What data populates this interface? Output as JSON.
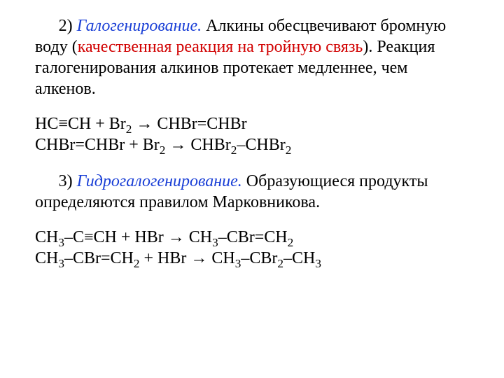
{
  "colors": {
    "text": "#000000",
    "term_blue": "#1a3fd6",
    "term_red": "#d10000",
    "background": "#ffffff"
  },
  "typography": {
    "font_family": "Times New Roman",
    "base_size_pt": 24
  },
  "section2": {
    "num": "2) ",
    "title": "Галогенирование.",
    "lead": " Алкины обесцвечивают бромную воду (",
    "qual": "качественная реакция на тройную связь",
    "tail": "). Реакция галогенирования алкинов протекает медленнее, чем алкенов."
  },
  "eq1": {
    "a": "HC≡CH + Br",
    "s1": "2",
    "b": " → CHBr=CHBr"
  },
  "eq2": {
    "a": "CHBr=CHBr + Br",
    "s1": "2",
    "b": " → CHBr",
    "s2": "2",
    "c": "–CHBr",
    "s3": "2"
  },
  "section3": {
    "num": "3) ",
    "title": "Гидрогалогенирование.",
    "body": " Образующиеся продукты определяются правилом Марковникова."
  },
  "eq3": {
    "a": "CH",
    "s1": "3",
    "b": "–C≡CH + HBr → CH",
    "s2": "3",
    "c": "–CBr=CH",
    "s3": "2"
  },
  "eq4": {
    "a": "CH",
    "s1": "3",
    "b": "–CBr=CH",
    "s2": "2",
    "c": " + HBr → CH",
    "s3": "3",
    "d": "–CBr",
    "s4": "2",
    "e": "–CH",
    "s5": "3"
  }
}
